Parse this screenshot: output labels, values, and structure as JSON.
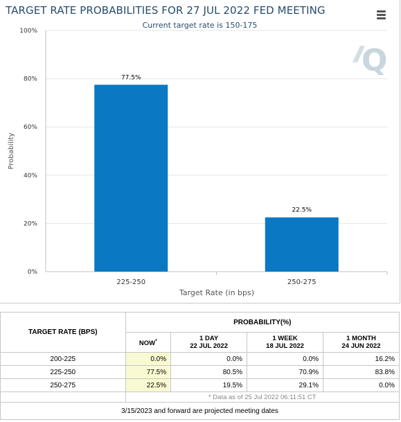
{
  "chart": {
    "title": "TARGET RATE PROBABILITIES FOR 27 JUL 2022 FED MEETING",
    "subtitle": "Current target rate is 150-175",
    "watermark": "Q",
    "colors": {
      "bar": "#0a78c2",
      "title": "#274b6d",
      "axis_text": "#333333",
      "grid": "#e6e6e6",
      "watermark": "#c8d6dd"
    }
  },
  "chart_data": {
    "type": "bar",
    "title": "TARGET RATE PROBABILITIES FOR 27 JUL 2022 FED MEETING",
    "subtitle": "Current target rate is 150-175",
    "categories": [
      "225-250",
      "250-275"
    ],
    "values": [
      77.5,
      22.5
    ],
    "data_labels": [
      "77.5%",
      "22.5%"
    ],
    "xlabel": "Target Rate (in bps)",
    "ylabel": "Probability",
    "ylim": [
      0,
      100
    ],
    "yticks": [
      "0%",
      "20%",
      "40%",
      "60%",
      "80%",
      "100%"
    ],
    "grid": true,
    "legend": "none"
  },
  "table": {
    "header_rate": "TARGET RATE (BPS)",
    "header_probability": "PROBABILITY(%)",
    "columns": [
      {
        "label": "NOW",
        "marker": "*"
      },
      {
        "label": "1 DAY",
        "date": "22 JUL 2022"
      },
      {
        "label": "1 WEEK",
        "date": "18 JUL 2022"
      },
      {
        "label": "1 MONTH",
        "date": "24 JUN 2022"
      }
    ],
    "rows": [
      {
        "rate": "200-225",
        "now": "0.0%",
        "day": "0.0%",
        "week": "0.0%",
        "month": "16.2%"
      },
      {
        "rate": "225-250",
        "now": "77.5%",
        "day": "80.5%",
        "week": "70.9%",
        "month": "83.8%"
      },
      {
        "rate": "250-275",
        "now": "22.5%",
        "day": "19.5%",
        "week": "29.1%",
        "month": "0.0%"
      }
    ],
    "note": "* Data as of 25 Jul 2022 06:11:51 CT",
    "footer": "3/15/2023 and forward are projected meeting dates"
  },
  "menu": {
    "icon": "hamburger-menu-icon"
  }
}
